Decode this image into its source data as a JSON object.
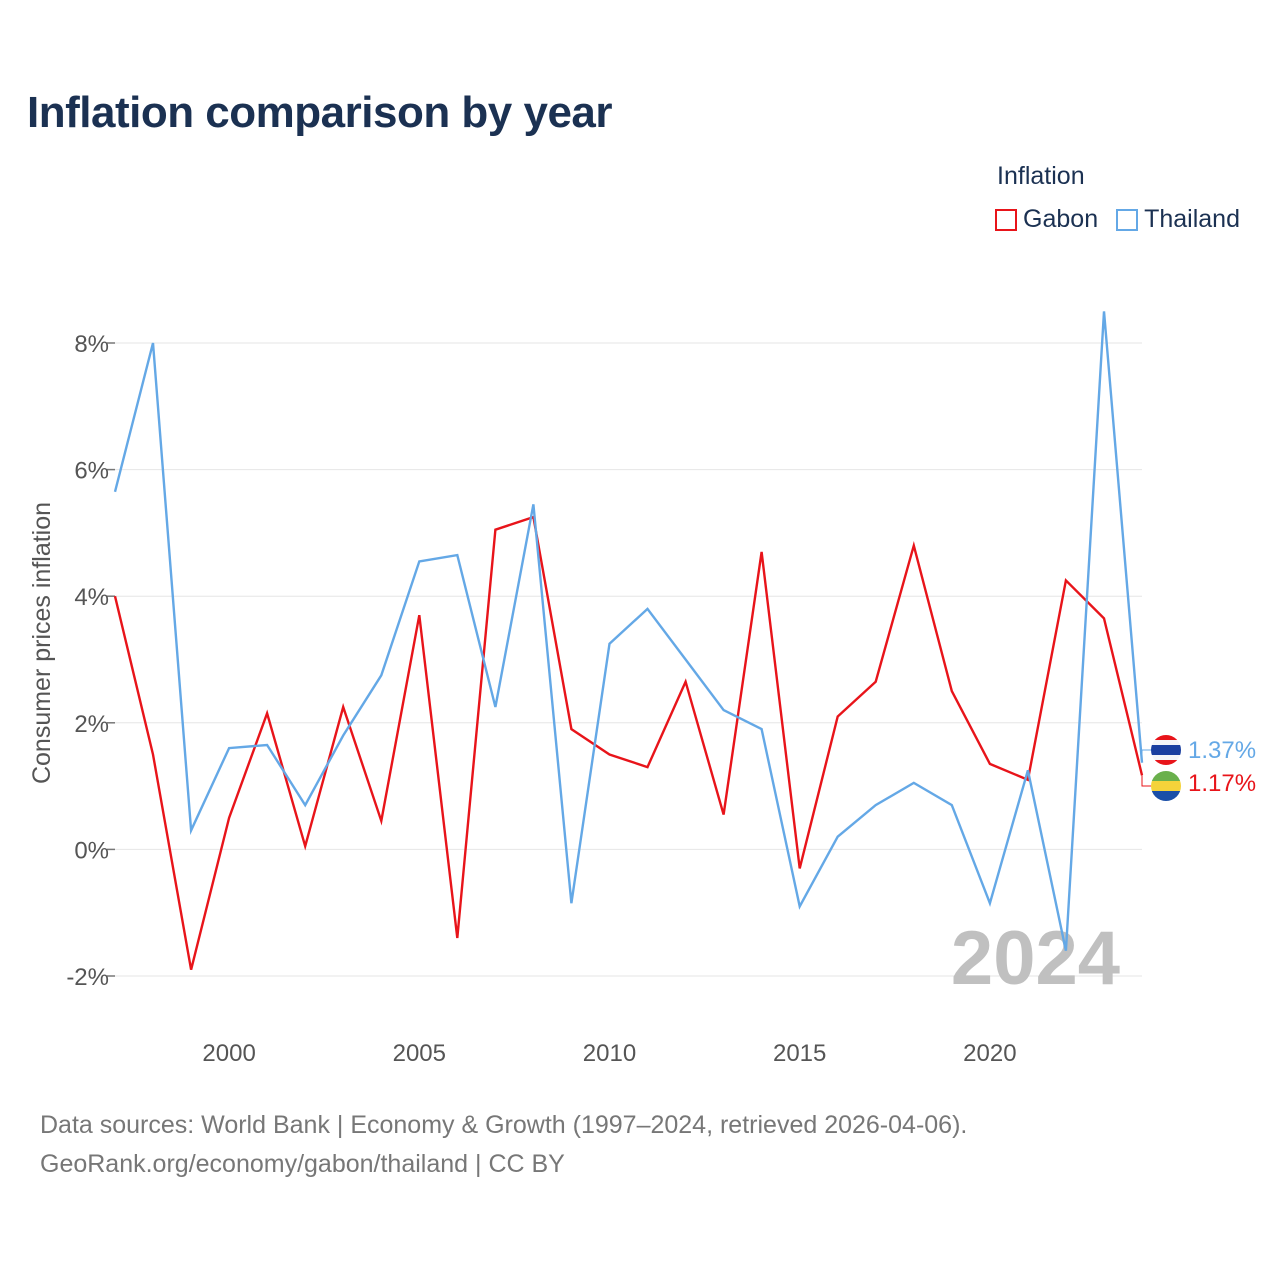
{
  "title": "Inflation comparison by year",
  "legend": {
    "title": "Inflation",
    "items": [
      {
        "name": "Gabon",
        "color": "#e8141a"
      },
      {
        "name": "Thailand",
        "color": "#64a8e6"
      }
    ]
  },
  "source": {
    "line1": "Data sources: World Bank | Economy & Growth (1997–2024, retrieved 2026-04-06).",
    "line2": "GeoRank.org/economy/gabon/thailand | CC BY"
  },
  "chart_data": {
    "type": "line",
    "ylabel": "Consumer prices inflation",
    "xlabel": "",
    "year_watermark": "2024",
    "xlim": [
      1997,
      2024
    ],
    "ylim": [
      -2.8,
      9.0
    ],
    "x_ticks": [
      2000,
      2005,
      2010,
      2015,
      2020
    ],
    "x_tick_labels": [
      "2000",
      "2005",
      "2010",
      "2015",
      "2020"
    ],
    "y_ticks": [
      -2,
      0,
      2,
      4,
      6,
      8
    ],
    "y_tick_labels": [
      "-2%",
      "0%",
      "2%",
      "4%",
      "6%",
      "8%"
    ],
    "x": [
      1997,
      1998,
      1999,
      2000,
      2001,
      2002,
      2003,
      2004,
      2005,
      2006,
      2007,
      2008,
      2009,
      2010,
      2011,
      2012,
      2013,
      2014,
      2015,
      2016,
      2017,
      2018,
      2019,
      2020,
      2021,
      2022,
      2023,
      2024
    ],
    "series": [
      {
        "name": "Gabon",
        "color": "#e8141a",
        "end_label": "1.17%",
        "values": [
          4.0,
          1.5,
          -1.9,
          0.5,
          2.15,
          0.05,
          2.25,
          0.45,
          3.7,
          -1.4,
          5.05,
          5.25,
          1.9,
          1.5,
          1.3,
          2.65,
          0.55,
          4.7,
          -0.3,
          2.1,
          2.65,
          4.8,
          2.5,
          1.35,
          1.1,
          4.25,
          3.65,
          1.17
        ]
      },
      {
        "name": "Thailand",
        "color": "#64a8e6",
        "end_label": "1.37%",
        "values": [
          5.65,
          8.0,
          0.3,
          1.6,
          1.65,
          0.7,
          1.8,
          2.75,
          4.55,
          4.65,
          2.25,
          5.45,
          -0.85,
          3.25,
          3.8,
          3.0,
          2.2,
          1.9,
          -0.9,
          0.2,
          0.7,
          1.05,
          0.7,
          -0.85,
          1.25,
          -1.6,
          8.5,
          1.37
        ]
      }
    ]
  }
}
